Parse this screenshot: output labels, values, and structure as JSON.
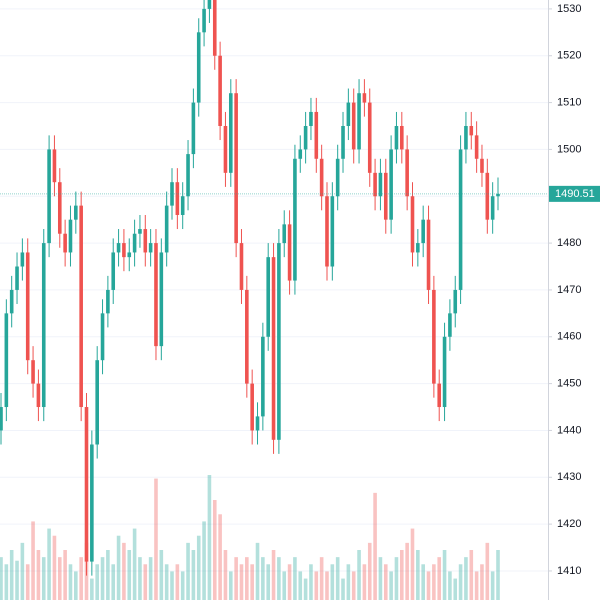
{
  "chart_data": {
    "type": "candlestick",
    "up_color": "#26a69a",
    "down_color": "#ef5350",
    "ylim": [
      1403.8,
      1531.9
    ],
    "yticks": [
      1410,
      1420,
      1430,
      1440,
      1450,
      1460,
      1470,
      1480,
      1490,
      1500,
      1510,
      1520,
      1530
    ],
    "grid": true,
    "open": [
      1440,
      1445,
      1465,
      1470,
      1475,
      1478,
      1455,
      1450,
      1445,
      1480,
      1500,
      1493,
      1482,
      1478,
      1485,
      1488,
      1445,
      1412,
      1437,
      1455,
      1465,
      1470,
      1478,
      1480,
      1477,
      1478,
      1482,
      1483,
      1478,
      1480,
      1458,
      1478,
      1488,
      1493,
      1486,
      1490,
      1499,
      1510,
      1525,
      1530,
      1532,
      1520,
      1505,
      1495,
      1512,
      1480,
      1470,
      1450,
      1440,
      1443,
      1460,
      1477,
      1438,
      1480,
      1484,
      1472,
      1498,
      1500,
      1505,
      1508,
      1498,
      1490,
      1475,
      1490,
      1498,
      1505,
      1510,
      1500,
      1512,
      1510,
      1495,
      1490,
      1495,
      1485,
      1500,
      1505,
      1500,
      1490,
      1478,
      1480,
      1485,
      1470,
      1450,
      1445,
      1460,
      1465,
      1470,
      1500,
      1505,
      1503,
      1498,
      1495,
      1485,
      1490
    ],
    "high": [
      1448,
      1468,
      1473,
      1478,
      1481,
      1481,
      1458,
      1453,
      1483,
      1503,
      1503,
      1496,
      1485,
      1488,
      1491,
      1491,
      1448,
      1440,
      1458,
      1468,
      1473,
      1481,
      1483,
      1483,
      1481,
      1485,
      1486,
      1486,
      1483,
      1483,
      1481,
      1491,
      1496,
      1496,
      1493,
      1502,
      1513,
      1528,
      1533,
      1535,
      1535,
      1523,
      1508,
      1515,
      1515,
      1483,
      1473,
      1453,
      1446,
      1463,
      1480,
      1480,
      1483,
      1487,
      1487,
      1501,
      1503,
      1508,
      1511,
      1511,
      1501,
      1493,
      1493,
      1501,
      1508,
      1513,
      1513,
      1515,
      1515,
      1513,
      1498,
      1498,
      1498,
      1503,
      1508,
      1508,
      1503,
      1493,
      1483,
      1488,
      1488,
      1473,
      1453,
      1463,
      1468,
      1473,
      1503,
      1508,
      1508,
      1506,
      1501,
      1498,
      1493,
      1494
    ],
    "low": [
      1437,
      1442,
      1462,
      1467,
      1472,
      1452,
      1447,
      1442,
      1442,
      1477,
      1490,
      1479,
      1475,
      1475,
      1482,
      1442,
      1409,
      1409,
      1434,
      1452,
      1462,
      1467,
      1475,
      1474,
      1474,
      1475,
      1479,
      1475,
      1475,
      1455,
      1455,
      1475,
      1485,
      1483,
      1483,
      1487,
      1496,
      1507,
      1522,
      1527,
      1517,
      1502,
      1492,
      1492,
      1477,
      1467,
      1447,
      1437,
      1437,
      1440,
      1457,
      1435,
      1435,
      1477,
      1469,
      1469,
      1495,
      1497,
      1502,
      1495,
      1487,
      1472,
      1472,
      1487,
      1495,
      1502,
      1497,
      1497,
      1507,
      1492,
      1487,
      1487,
      1482,
      1482,
      1497,
      1497,
      1487,
      1475,
      1475,
      1477,
      1467,
      1447,
      1442,
      1442,
      1457,
      1462,
      1467,
      1497,
      1500,
      1495,
      1492,
      1482,
      1482,
      1487
    ],
    "close": [
      1445,
      1465,
      1470,
      1475,
      1478,
      1455,
      1450,
      1445,
      1480,
      1500,
      1493,
      1482,
      1478,
      1485,
      1488,
      1445,
      1412,
      1437,
      1455,
      1465,
      1470,
      1478,
      1480,
      1477,
      1478,
      1482,
      1483,
      1478,
      1480,
      1458,
      1478,
      1488,
      1493,
      1486,
      1490,
      1499,
      1510,
      1525,
      1530,
      1532,
      1520,
      1505,
      1495,
      1512,
      1480,
      1470,
      1450,
      1440,
      1443,
      1460,
      1477,
      1438,
      1480,
      1484,
      1472,
      1498,
      1500,
      1505,
      1508,
      1498,
      1490,
      1475,
      1490,
      1498,
      1505,
      1510,
      1500,
      1512,
      1510,
      1495,
      1490,
      1495,
      1485,
      1500,
      1505,
      1500,
      1490,
      1478,
      1480,
      1485,
      1470,
      1450,
      1445,
      1460,
      1465,
      1470,
      1500,
      1505,
      1503,
      1498,
      1495,
      1485,
      1490,
      1490.51
    ],
    "volume": [
      12,
      10,
      14,
      11,
      16,
      10,
      22,
      14,
      12,
      20,
      18,
      12,
      14,
      10,
      8,
      12,
      16,
      6,
      10,
      12,
      14,
      10,
      18,
      16,
      14,
      20,
      12,
      10,
      12,
      34,
      14,
      10,
      8,
      10,
      8,
      16,
      14,
      18,
      22,
      35,
      28,
      24,
      14,
      8,
      12,
      10,
      12,
      10,
      16,
      12,
      10,
      14,
      12,
      8,
      10,
      12,
      8,
      6,
      10,
      8,
      12,
      8,
      10,
      12,
      6,
      10,
      8,
      14,
      10,
      16,
      30,
      12,
      10,
      8,
      12,
      14,
      16,
      20,
      14,
      10,
      8,
      10,
      12,
      14,
      8,
      6,
      10,
      12,
      14,
      8,
      10,
      16,
      8,
      14
    ]
  }
}
